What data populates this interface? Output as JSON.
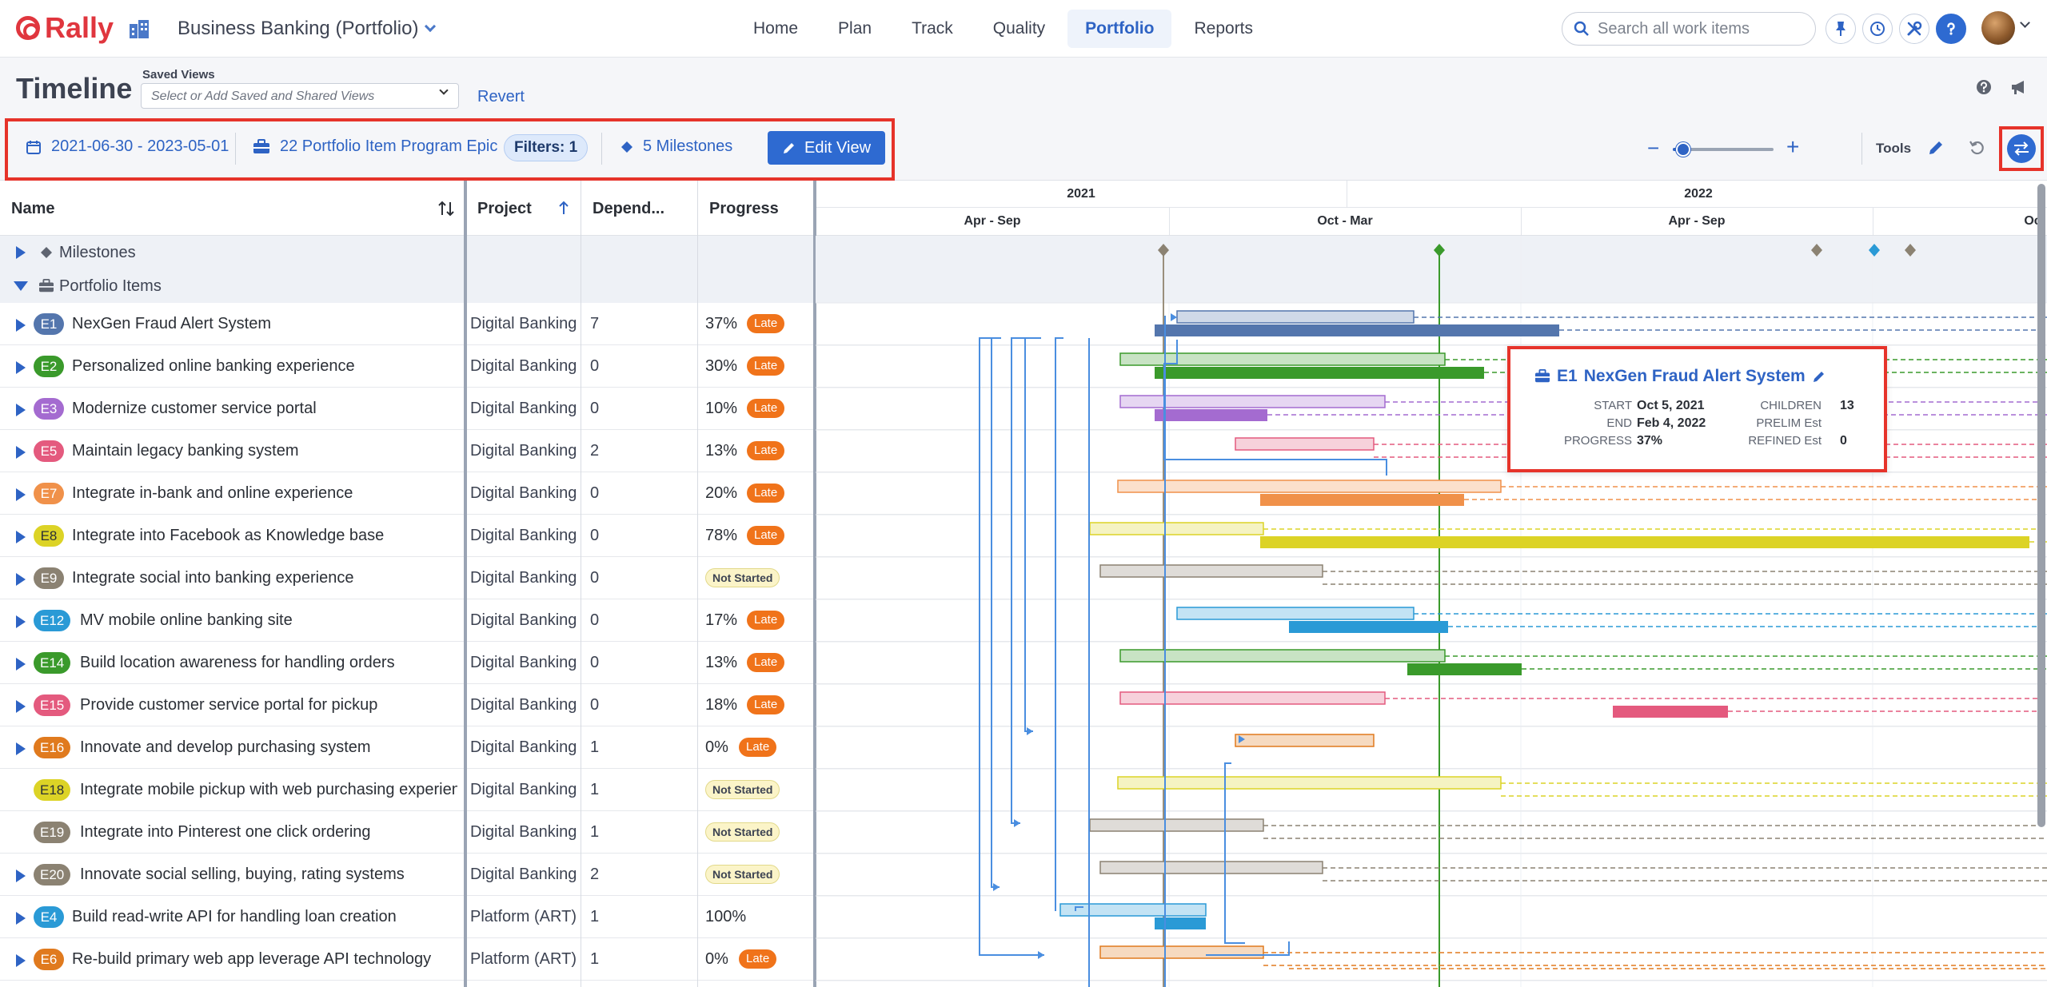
{
  "app": {
    "logo": "Rally",
    "workspace": "Business Banking (Portfolio)",
    "tabs": [
      {
        "label": "Home",
        "active": false
      },
      {
        "label": "Plan",
        "active": false
      },
      {
        "label": "Track",
        "active": false
      },
      {
        "label": "Quality",
        "active": false
      },
      {
        "label": "Portfolio",
        "active": true
      },
      {
        "label": "Reports",
        "active": false
      }
    ],
    "search_placeholder": "Search all work items"
  },
  "page": {
    "title": "Timeline",
    "saved_views_label": "Saved Views",
    "saved_views_placeholder": "Select or Add Saved and Shared Views",
    "revert_label": "Revert"
  },
  "toolbar": {
    "date_range": "2021-06-30 - 2023-05-01",
    "items_label": "22 Portfolio Item Program Epic",
    "filters_label": "Filters: 1",
    "milestones_label": "5 Milestones",
    "edit_view_label": "Edit View",
    "zoom_level": 0.1,
    "tools_label": "Tools"
  },
  "grid": {
    "columns": {
      "name": "Name",
      "project": "Project",
      "dependencies": "Depend...",
      "progress": "Progress"
    },
    "groups": {
      "milestones": "Milestones",
      "portfolio_items": "Portfolio Items"
    },
    "rows": [
      {
        "id": "E1",
        "name": "NexGen Fraud Alert System",
        "project": "Digital Banking",
        "deps": "7",
        "progress": "37%",
        "status": "Late",
        "color": "#5476ad",
        "expandable": true
      },
      {
        "id": "E2",
        "name": "Personalized online banking experience",
        "project": "Digital Banking",
        "deps": "0",
        "progress": "30%",
        "status": "Late",
        "color": "#3a9a2b",
        "expandable": true
      },
      {
        "id": "E3",
        "name": "Modernize customer service portal",
        "project": "Digital Banking",
        "deps": "0",
        "progress": "10%",
        "status": "Late",
        "color": "#a46bd0",
        "expandable": true
      },
      {
        "id": "E5",
        "name": "Maintain legacy banking system",
        "project": "Digital Banking",
        "deps": "2",
        "progress": "13%",
        "status": "Late",
        "color": "#e45a7e",
        "expandable": true
      },
      {
        "id": "E7",
        "name": "Integrate in-bank and online experience",
        "project": "Digital Banking",
        "deps": "0",
        "progress": "20%",
        "status": "Late",
        "color": "#f0914a",
        "expandable": true
      },
      {
        "id": "E8",
        "name": "Integrate into Facebook as Knowledge base",
        "project": "Digital Banking",
        "deps": "0",
        "progress": "78%",
        "status": "Late",
        "color": "#dcd326",
        "expandable": true
      },
      {
        "id": "E9",
        "name": "Integrate social into banking experience",
        "project": "Digital Banking",
        "deps": "0",
        "progress": "",
        "status": "Not Started",
        "color": "#8b8272",
        "expandable": true
      },
      {
        "id": "E12",
        "name": "MV mobile online banking site",
        "project": "Digital Banking",
        "deps": "0",
        "progress": "17%",
        "status": "Late",
        "color": "#2a9ad6",
        "expandable": true
      },
      {
        "id": "E14",
        "name": "Build location awareness for handling orders",
        "project": "Digital Banking",
        "deps": "0",
        "progress": "13%",
        "status": "Late",
        "color": "#3a9a2b",
        "expandable": true
      },
      {
        "id": "E15",
        "name": "Provide customer service portal for pickup",
        "project": "Digital Banking",
        "deps": "0",
        "progress": "18%",
        "status": "Late",
        "color": "#e45a7e",
        "expandable": true
      },
      {
        "id": "E16",
        "name": "Innovate and develop purchasing system",
        "project": "Digital Banking",
        "deps": "1",
        "progress": "0%",
        "status": "Late",
        "color": "#e07a1e",
        "expandable": true
      },
      {
        "id": "E18",
        "name": "Integrate mobile pickup with web purchasing experience",
        "project": "Digital Banking",
        "deps": "1",
        "progress": "",
        "status": "Not Started",
        "color": "#dcd326",
        "expandable": false
      },
      {
        "id": "E19",
        "name": "Integrate into Pinterest one click ordering",
        "project": "Digital Banking",
        "deps": "1",
        "progress": "",
        "status": "Not Started",
        "color": "#8b8272",
        "expandable": false
      },
      {
        "id": "E20",
        "name": "Innovate social selling, buying, rating systems",
        "project": "Digital Banking",
        "deps": "2",
        "progress": "",
        "status": "Not Started",
        "color": "#8b8272",
        "expandable": true
      },
      {
        "id": "E4",
        "name": "Build read-write API for handling loan creation",
        "project": "Platform (ART)",
        "deps": "1",
        "progress": "100%",
        "status": "",
        "color": "#2a9ad6",
        "expandable": true
      },
      {
        "id": "E6",
        "name": "Re-build primary web app leverage API technology",
        "project": "Platform (ART)",
        "deps": "1",
        "progress": "0%",
        "status": "Late",
        "color": "#e07a1e",
        "expandable": true
      }
    ]
  },
  "timeline": {
    "years": [
      "2021",
      "2022"
    ],
    "halves": [
      "Apr - Sep",
      "Oct - Mar",
      "Apr - Sep",
      "Oc"
    ]
  },
  "tooltip": {
    "id": "E1",
    "name": "NexGen Fraud Alert System",
    "start_label": "START",
    "start": "Oct 5, 2021",
    "end_label": "END",
    "end": "Feb 4, 2022",
    "progress_label": "PROGRESS",
    "progress": "37%",
    "children_label": "CHILDREN",
    "children": "13",
    "prelim_label": "PRELIM Est",
    "prelim": "",
    "refined_label": "REFINED Est",
    "refined": "0"
  },
  "colors": {
    "accent": "#2e63c4",
    "late": "#f0731a",
    "highlight": "#e6332a",
    "today": "#3a9a2b",
    "milestone": "#8b8272"
  }
}
